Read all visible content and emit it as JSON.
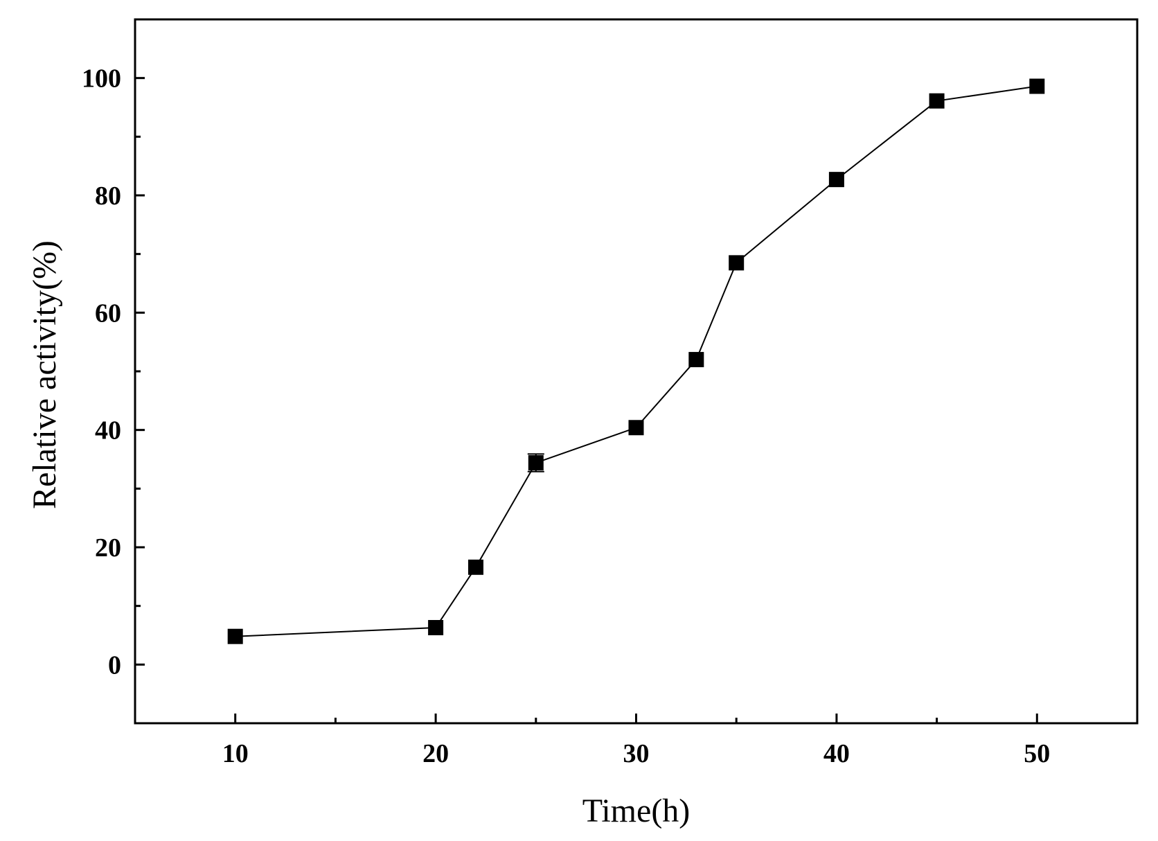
{
  "chart_data": {
    "type": "line",
    "title": "",
    "xlabel": "Time(h)",
    "ylabel": "Relative activity(%)",
    "xlim": [
      5,
      55
    ],
    "ylim": [
      -10,
      110
    ],
    "x_ticks": [
      10,
      20,
      30,
      40,
      50
    ],
    "x_minor_ticks": [
      15,
      25,
      35,
      45
    ],
    "y_ticks": [
      0,
      20,
      40,
      60,
      80,
      100
    ],
    "y_minor_ticks": [
      10,
      30,
      50,
      70,
      90
    ],
    "grid": false,
    "marker": "square",
    "series": [
      {
        "x": [
          10,
          20,
          22,
          25,
          30,
          33,
          35,
          40,
          45,
          50
        ],
        "y": [
          4.8,
          6.3,
          16.6,
          34.4,
          40.4,
          52.0,
          68.5,
          82.7,
          96.1,
          98.6
        ],
        "error": [
          0,
          0,
          0,
          1.5,
          0,
          0,
          0,
          0,
          0,
          0
        ]
      }
    ],
    "colors": {
      "line": "#000000",
      "marker": "#000000",
      "axis": "#000000"
    }
  }
}
